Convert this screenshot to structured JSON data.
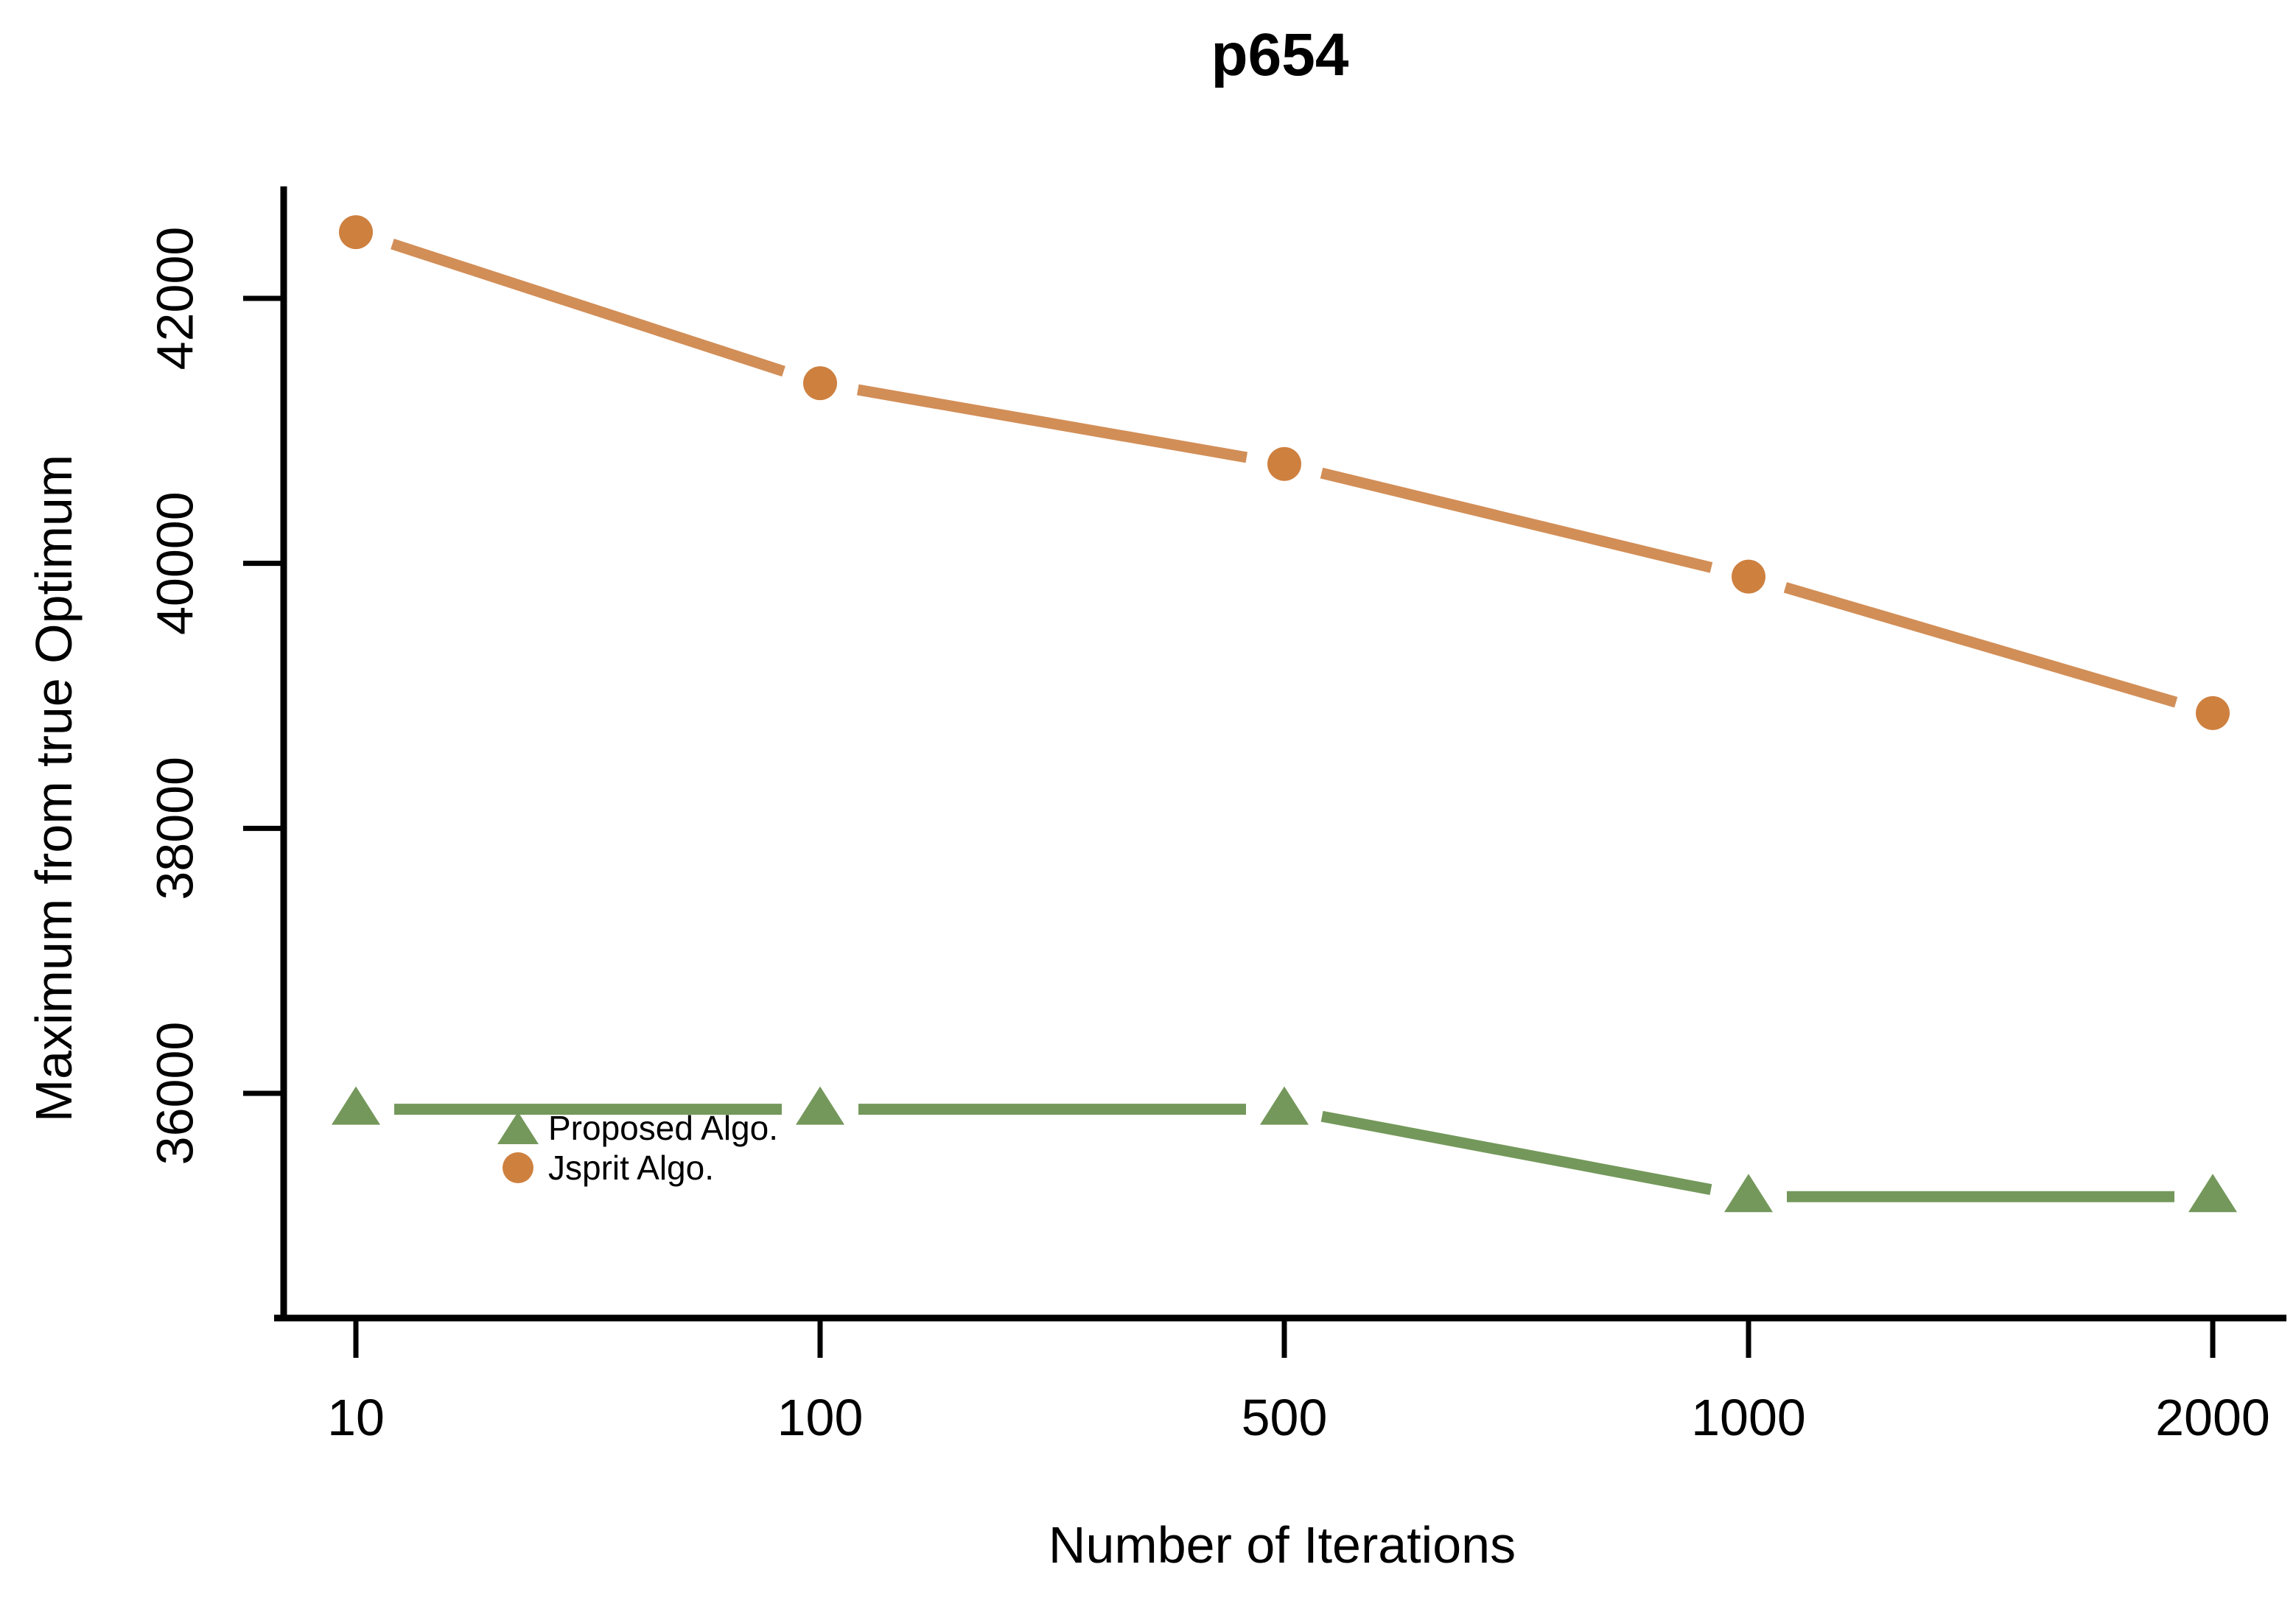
{
  "chart_data": {
    "type": "line",
    "title": "p654",
    "xlabel": "Number of Iterations",
    "ylabel": "Maximum from true Optimum",
    "categories": [
      "10",
      "100",
      "500",
      "1000",
      "2000"
    ],
    "yticks": [
      36000,
      38000,
      40000,
      42000
    ],
    "ylim": [
      34650,
      42850
    ],
    "grid": false,
    "legend_position": "inside-left-middle",
    "axis_color": "#000000",
    "series": [
      {
        "name": "Proposed Algo.",
        "marker": "triangle",
        "color": "#74985b",
        "values": [
          35880,
          35880,
          35880,
          35220,
          35220
        ]
      },
      {
        "name": "Jsprit Algo.",
        "marker": "circle",
        "color": "#ce803f",
        "line_color": "#d28e57",
        "values": [
          42500,
          41360,
          40750,
          39900,
          38870
        ]
      }
    ]
  }
}
